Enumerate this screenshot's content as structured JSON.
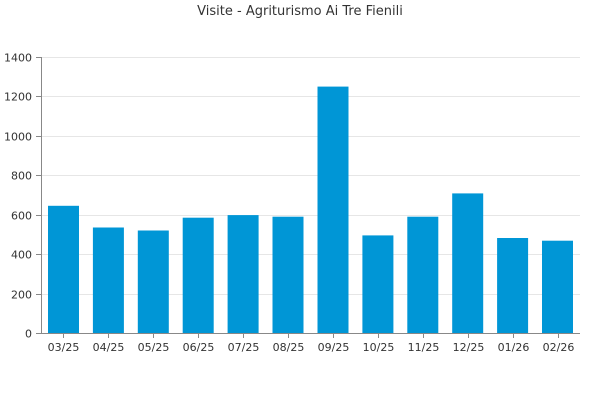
{
  "chart_data": {
    "type": "bar",
    "title": "Visite - Agriturismo Ai Tre Fienili",
    "xlabel": "",
    "ylabel": "",
    "categories": [
      "03/25",
      "04/25",
      "05/25",
      "06/25",
      "07/25",
      "08/25",
      "09/25",
      "10/25",
      "11/25",
      "12/25",
      "01/26",
      "02/26"
    ],
    "values": [
      645,
      535,
      520,
      585,
      598,
      590,
      1250,
      495,
      590,
      708,
      482,
      468
    ],
    "ylim": [
      0,
      1400
    ],
    "yticks": [
      0,
      200,
      400,
      600,
      800,
      1000,
      1200,
      1400
    ],
    "grid": true,
    "bar_color": "#0096d6",
    "grid_color": "#e6e6e6",
    "axis_color": "#888888",
    "text_color": "#333333"
  }
}
